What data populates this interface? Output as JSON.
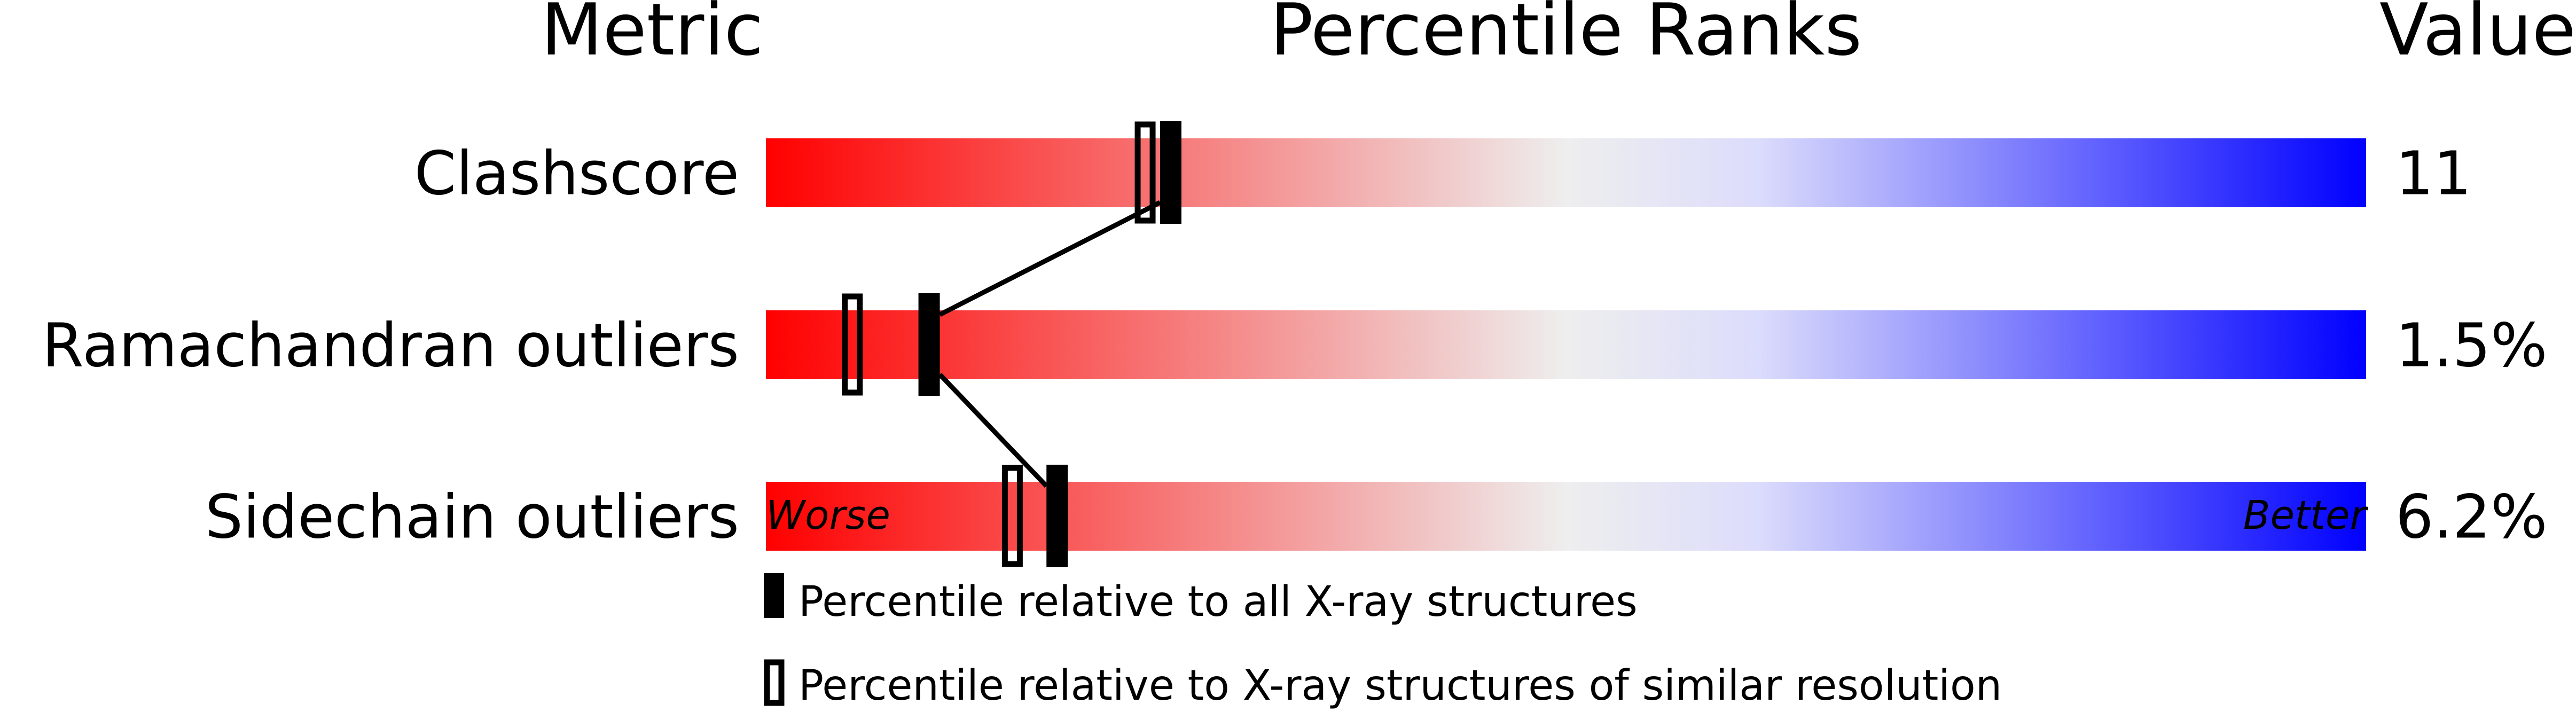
{
  "chart_data": {
    "type": "bar",
    "headers": {
      "metric": "Metric",
      "percentile": "Percentile Ranks",
      "value": "Value"
    },
    "xlim": [
      0,
      100
    ],
    "axis_labels": {
      "left": "Worse",
      "right": "Better"
    },
    "gradient_colors": [
      "#ff0000",
      "#eeeeee",
      "#dcdcfc",
      "#0000ff"
    ],
    "metrics": [
      {
        "name": "Clashscore",
        "value": "11",
        "percentile_all": 25.3,
        "percentile_similar": 23.7
      },
      {
        "name": "Ramachandran outliers",
        "value": "1.5%",
        "percentile_all": 10.2,
        "percentile_similar": 5.4
      },
      {
        "name": "Sidechain outliers",
        "value": "6.2%",
        "percentile_all": 18.2,
        "percentile_similar": 15.4
      }
    ],
    "legend": [
      {
        "marker": "filled",
        "label": "Percentile relative to all X-ray structures"
      },
      {
        "marker": "open",
        "label": "Percentile relative to X-ray structures of similar resolution"
      }
    ]
  }
}
